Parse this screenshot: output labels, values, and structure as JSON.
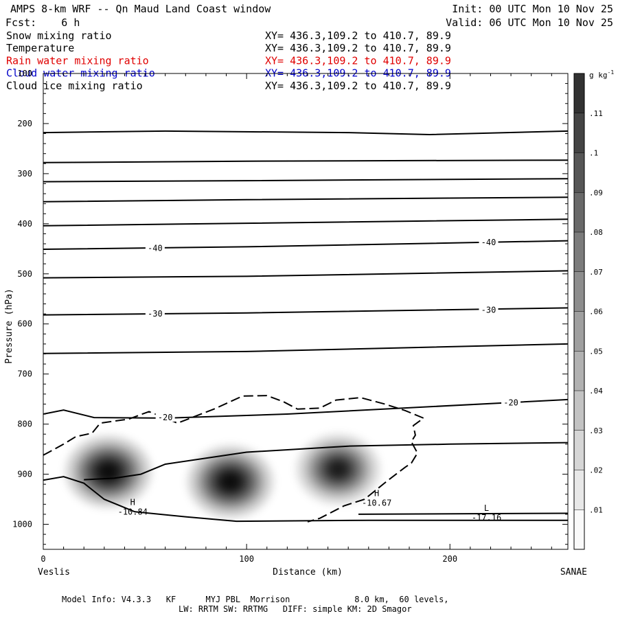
{
  "header": {
    "title": "AMPS 8-km WRF -- Qn Maud Land Coast window",
    "init": "Init: 00 UTC Mon 10 Nov 25",
    "fcst": "Fcst:    6 h",
    "valid": "Valid: 06 UTC Mon 10 Nov 25"
  },
  "fields": [
    {
      "name": "Snow mixing ratio",
      "xy": "XY= 436.3,109.2 to 410.7, 89.9",
      "color": "#000000"
    },
    {
      "name": "Temperature",
      "xy": "XY= 436.3,109.2 to 410.7, 89.9",
      "color": "#000000"
    },
    {
      "name": "Rain water mixing ratio",
      "xy": "XY= 436.3,109.2 to 410.7, 89.9",
      "color": "#e00000"
    },
    {
      "name": "Cloud water mixing ratio",
      "xy": "XY= 436.3,109.2 to 410.7, 89.9",
      "color": "#0000c8"
    },
    {
      "name": "Cloud ice mixing ratio",
      "xy": "XY= 436.3,109.2 to 410.7, 89.9",
      "color": "#000000"
    }
  ],
  "chart_data": {
    "type": "cross-section",
    "title": "AMPS 8-km WRF -- Qn Maud Land Coast window",
    "xlabel": "Distance (km)",
    "ylabel": "Pressure (hPa)",
    "x_range": [
      0,
      258
    ],
    "y_range": [
      1050,
      100
    ],
    "x_ticks": [
      0,
      100,
      200
    ],
    "y_ticks": [
      100,
      200,
      300,
      400,
      500,
      600,
      700,
      800,
      900,
      1000
    ],
    "endpoints": {
      "left": "Veslis",
      "right": "SANAE"
    },
    "isotherms": [
      {
        "points": [
          [
            0,
            218
          ],
          [
            60,
            215
          ],
          [
            150,
            218
          ],
          [
            190,
            222
          ],
          [
            258,
            215
          ]
        ]
      },
      {
        "points": [
          [
            0,
            278
          ],
          [
            100,
            275
          ],
          [
            258,
            273
          ]
        ]
      },
      {
        "points": [
          [
            0,
            316
          ],
          [
            100,
            314
          ],
          [
            258,
            310
          ]
        ]
      },
      {
        "points": [
          [
            0,
            356
          ],
          [
            100,
            352
          ],
          [
            258,
            347
          ]
        ]
      },
      {
        "points": [
          [
            0,
            404
          ],
          [
            100,
            399
          ],
          [
            258,
            391
          ]
        ]
      },
      {
        "points": [
          [
            0,
            451
          ],
          [
            100,
            446
          ],
          [
            258,
            434
          ]
        ],
        "label": "-40",
        "label_at": [
          [
            55,
            449
          ],
          [
            219,
            437
          ]
        ]
      },
      {
        "points": [
          [
            0,
            508
          ],
          [
            100,
            505
          ],
          [
            258,
            494
          ]
        ]
      },
      {
        "points": [
          [
            0,
            582
          ],
          [
            100,
            578
          ],
          [
            258,
            568
          ]
        ],
        "label": "-30",
        "label_at": [
          [
            55,
            580
          ],
          [
            219,
            572
          ]
        ]
      },
      {
        "points": [
          [
            0,
            659
          ],
          [
            100,
            655
          ],
          [
            258,
            640
          ]
        ]
      },
      {
        "points": [
          [
            0,
            780
          ],
          [
            10,
            772
          ],
          [
            25,
            787
          ],
          [
            60,
            788
          ],
          [
            120,
            780
          ],
          [
            258,
            751
          ]
        ],
        "label": "-20",
        "label_at": [
          [
            60,
            787
          ],
          [
            230,
            757
          ]
        ]
      },
      {
        "points": [
          [
            0,
            912
          ],
          [
            10,
            905
          ],
          [
            20,
            918
          ],
          [
            30,
            950
          ],
          [
            45,
            975
          ],
          [
            70,
            985
          ],
          [
            95,
            994
          ],
          [
            160,
            992
          ],
          [
            258,
            992
          ]
        ]
      },
      {
        "points": [
          [
            20,
            911
          ],
          [
            35,
            908
          ],
          [
            48,
            900
          ],
          [
            60,
            880
          ],
          [
            80,
            868
          ],
          [
            100,
            856
          ],
          [
            150,
            844
          ],
          [
            200,
            840
          ],
          [
            258,
            837
          ]
        ]
      },
      {
        "points": [
          [
            155,
            980
          ],
          [
            258,
            978
          ]
        ]
      }
    ],
    "cloud_ice_contour": {
      "style": "dashed",
      "points": [
        [
          0,
          862
        ],
        [
          10,
          840
        ],
        [
          16,
          825
        ],
        [
          24,
          818
        ],
        [
          28,
          798
        ],
        [
          42,
          790
        ],
        [
          52,
          775
        ],
        [
          60,
          788
        ],
        [
          66,
          798
        ],
        [
          84,
          770
        ],
        [
          98,
          744
        ],
        [
          110,
          743
        ],
        [
          118,
          755
        ],
        [
          125,
          770
        ],
        [
          136,
          768
        ],
        [
          144,
          752
        ],
        [
          156,
          747
        ],
        [
          168,
          760
        ],
        [
          178,
          773
        ],
        [
          187,
          788
        ],
        [
          182,
          803
        ],
        [
          183,
          822
        ],
        [
          181,
          835
        ],
        [
          183,
          850
        ],
        [
          184,
          858
        ],
        [
          181,
          878
        ],
        [
          178,
          886
        ],
        [
          169,
          914
        ],
        [
          158,
          950
        ],
        [
          148,
          963
        ],
        [
          136,
          988
        ],
        [
          130,
          995
        ]
      ]
    },
    "shaded_field": {
      "name": "Snow mixing ratio",
      "units": "g kg-1",
      "levels": [
        0.01,
        0.02,
        0.03,
        0.04,
        0.05,
        0.06,
        0.07,
        0.08,
        0.09,
        0.1,
        0.11
      ],
      "maxima": [
        {
          "x": 32,
          "p": 895,
          "value": 0.11
        },
        {
          "x": 92,
          "p": 915,
          "value": 0.11
        },
        {
          "x": 145,
          "p": 890,
          "value": 0.09
        }
      ]
    },
    "extrema": [
      {
        "type": "H",
        "value": "-10.84",
        "x": 44,
        "p": 978
      },
      {
        "type": "H",
        "value": "-10.67",
        "x": 164,
        "p": 960
      },
      {
        "type": "L",
        "value": "-17.16",
        "x": 218,
        "p": 990
      }
    ]
  },
  "colorbar": {
    "units": "g kg",
    "units_exp": "-1",
    "labels": [
      ".01",
      ".02",
      ".03",
      ".04",
      ".05",
      ".06",
      ".07",
      ".08",
      ".09",
      ".1",
      ".11"
    ]
  },
  "footer": {
    "line1": "Model Info: V4.3.3   KF      MYJ PBL  Morrison             8.0 km,  60 levels,",
    "line2": "LW: RRTM SW: RRTMG   DIFF: simple KM: 2D Smagor"
  }
}
